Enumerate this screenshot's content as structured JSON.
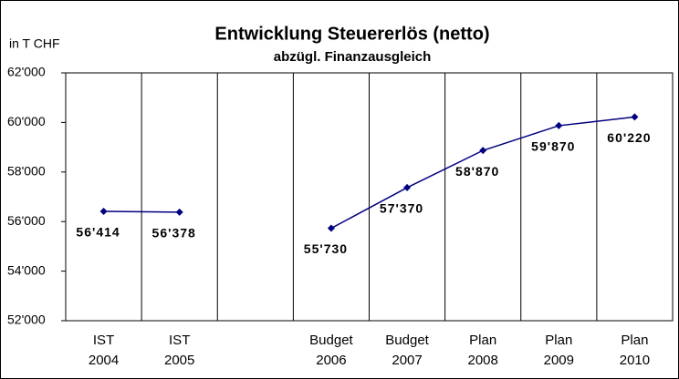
{
  "chart_data": {
    "type": "line",
    "title": "Entwicklung  Steuererlös (netto)",
    "subtitle": "abzügl. Finanzausgleich",
    "y_label": "in T CHF",
    "categories": [
      [
        "IST",
        "2004"
      ],
      [
        "IST",
        "2005"
      ],
      null,
      [
        "Budget",
        "2006"
      ],
      [
        "Budget",
        "2007"
      ],
      [
        "Plan",
        "2008"
      ],
      [
        "Plan",
        "2009"
      ],
      [
        "Plan",
        "2010"
      ]
    ],
    "series": [
      {
        "name": "Steuererlös",
        "color": "#000080",
        "values": [
          56414,
          56378,
          null,
          55730,
          57370,
          58870,
          59870,
          60220
        ],
        "value_labels": [
          "56'414",
          "56'378",
          null,
          "55'730",
          "57'370",
          "58'870",
          "59'870",
          "60'220"
        ]
      }
    ],
    "ylim": [
      52000,
      62000
    ],
    "yticks": [
      {
        "value": 52000,
        "label": "52'000"
      },
      {
        "value": 54000,
        "label": "54'000"
      },
      {
        "value": 56000,
        "label": "56'000"
      },
      {
        "value": 58000,
        "label": "58'000"
      },
      {
        "value": 60000,
        "label": "60'000"
      },
      {
        "value": 62000,
        "label": "62'000"
      }
    ],
    "grid": false
  }
}
